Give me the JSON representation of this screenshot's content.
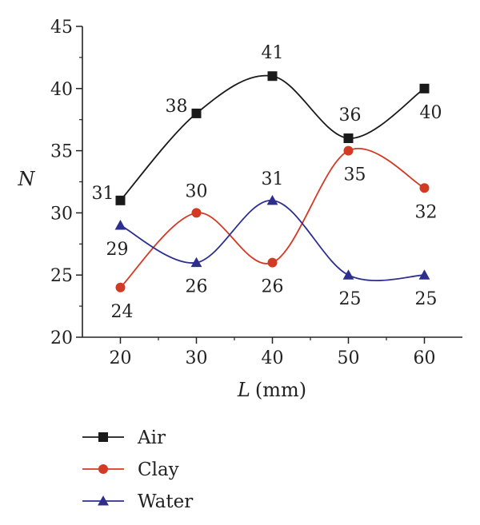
{
  "chart_data": {
    "type": "line",
    "xlabel_var": "L",
    "xlabel_unit": "(mm)",
    "ylabel": "N",
    "x": [
      20,
      30,
      40,
      50,
      60
    ],
    "xlim": [
      15,
      65
    ],
    "ylim": [
      20,
      45
    ],
    "xticks": [
      "20",
      "30",
      "40",
      "50",
      "60"
    ],
    "yticks": [
      "20",
      "25",
      "30",
      "35",
      "40",
      "45"
    ],
    "grid": false,
    "legend_position": "bottom-left, below plot",
    "series": [
      {
        "name": "Air",
        "values": [
          31,
          38,
          41,
          36,
          40
        ],
        "color": "#1a1a1a",
        "marker": "square",
        "labels": [
          "31",
          "38",
          "41",
          "36",
          "40"
        ]
      },
      {
        "name": "Clay",
        "values": [
          24,
          30,
          26,
          35,
          32
        ],
        "color": "#d33a24",
        "marker": "circle",
        "labels": [
          "24",
          "30",
          "26",
          "35",
          "32"
        ]
      },
      {
        "name": "Water",
        "values": [
          29,
          26,
          31,
          25,
          25
        ],
        "color": "#2d2f8f",
        "marker": "triangle",
        "labels": [
          "29",
          "26",
          "31",
          "25",
          "25"
        ]
      }
    ]
  }
}
